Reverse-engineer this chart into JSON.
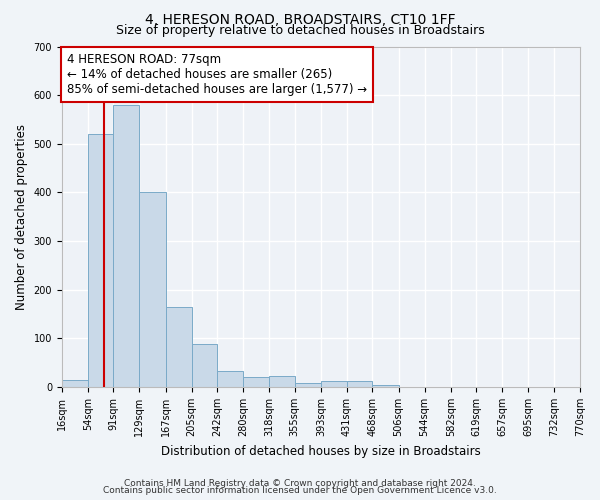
{
  "title": "4, HERESON ROAD, BROADSTAIRS, CT10 1FF",
  "subtitle": "Size of property relative to detached houses in Broadstairs",
  "xlabel": "Distribution of detached houses by size in Broadstairs",
  "ylabel": "Number of detached properties",
  "bar_edges": [
    16,
    54,
    91,
    129,
    167,
    205,
    242,
    280,
    318,
    355,
    393,
    431,
    468,
    506,
    544,
    582,
    619,
    657,
    695,
    732,
    770
  ],
  "bar_heights": [
    15,
    520,
    580,
    400,
    165,
    88,
    33,
    20,
    22,
    8,
    12,
    12,
    5,
    0,
    0,
    0,
    0,
    0,
    0,
    0
  ],
  "bar_color": "#c9d9e8",
  "bar_edge_color": "#7aaac8",
  "vline_x": 77,
  "vline_color": "#cc0000",
  "annotation_line1": "4 HERESON ROAD: 77sqm",
  "annotation_line2": "← 14% of detached houses are smaller (265)",
  "annotation_line3": "85% of semi-detached houses are larger (1,577) →",
  "annotation_box_color": "#ffffff",
  "annotation_box_edge": "#cc0000",
  "ylim": [
    0,
    700
  ],
  "yticks": [
    0,
    100,
    200,
    300,
    400,
    500,
    600,
    700
  ],
  "footer_line1": "Contains HM Land Registry data © Crown copyright and database right 2024.",
  "footer_line2": "Contains public sector information licensed under the Open Government Licence v3.0.",
  "bg_color": "#f0f4f8",
  "plot_bg_color": "#eef2f7",
  "grid_color": "#ffffff",
  "title_fontsize": 10,
  "subtitle_fontsize": 9,
  "axis_label_fontsize": 8.5,
  "tick_fontsize": 7,
  "annotation_fontsize": 8.5,
  "footer_fontsize": 6.5
}
